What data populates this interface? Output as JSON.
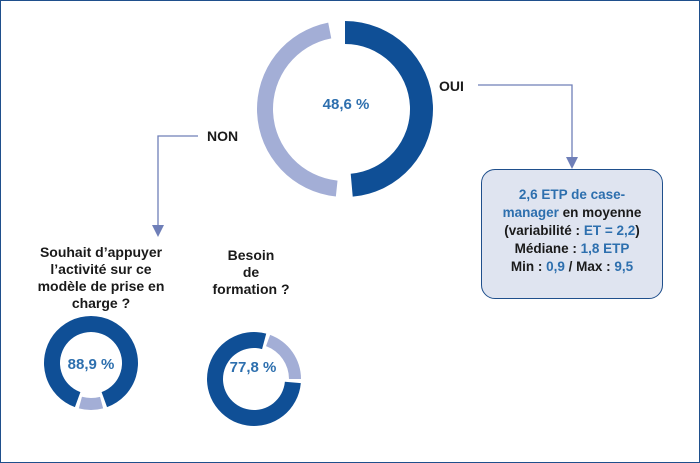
{
  "main_share": {
    "value": 48.6,
    "label": "48,6 %"
  },
  "branch_yes": {
    "label": "OUI"
  },
  "branch_no": {
    "label": "NON"
  },
  "info": {
    "l1": "2,6 ETP de case-",
    "l2a": "manager",
    "l2b": " en moyenne",
    "l3a": "(variabilité : ",
    "l3b": "ET = 2,2",
    "l3c": ")",
    "l4a": "Médiane : ",
    "l4b": "1,8 ETP",
    "l5a": "Min : ",
    "l5b": "0,9",
    "l5c": " / Max : ",
    "l5d": "9,5"
  },
  "q1": {
    "l1": "Souhait d’appuyer",
    "l2": "l’activité sur ce",
    "l3": "modèle de prise en",
    "l4": "charge ?",
    "value": 88.9,
    "label": "88,9 %"
  },
  "q2": {
    "l1": "Besoin",
    "l2": "de",
    "l3": "formation ?",
    "value": 77.8,
    "label": "77,8 %"
  },
  "colors": {
    "dark": "#0f4f96",
    "light": "#a3aed6",
    "text_blue": "#2d6fae",
    "box_bg": "#dfe4f0"
  }
}
